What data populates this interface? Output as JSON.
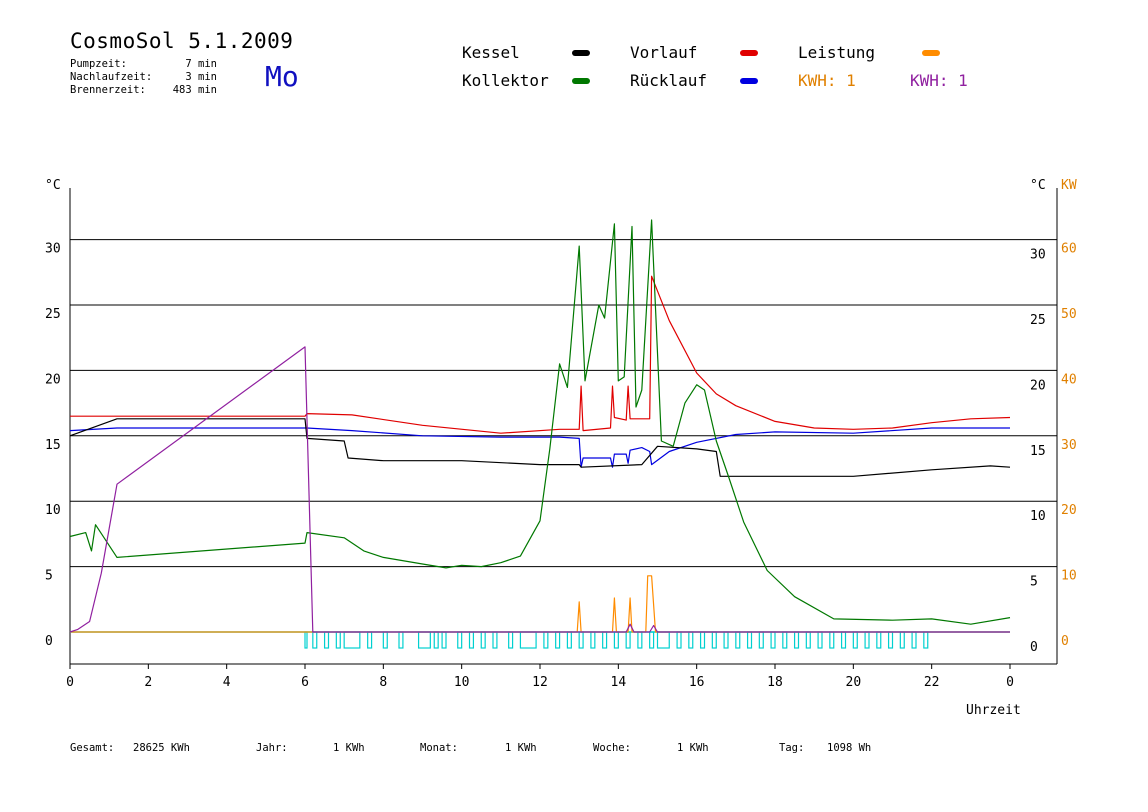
{
  "header": {
    "title": "CosmoSol 5.1.2009",
    "day": "Mo",
    "pump_label": "Pumpzeit:",
    "pump_value": "7 min",
    "nachlauf_label": "Nachlaufzeit:",
    "nachlauf_value": "3 min",
    "brenner_label": "Brennerzeit:",
    "brenner_value": "483 min"
  },
  "legend": {
    "kessel": "Kessel",
    "kollektor": "Kollektor",
    "vorlauf": "Vorlauf",
    "ruecklauf": "Rücklauf",
    "leistung": "Leistung",
    "kwh_orange": "KWH: 1",
    "kwh_purple": "KWH: 1"
  },
  "colors": {
    "kessel": "#000000",
    "kollektor": "#007800",
    "vorlauf": "#e00000",
    "ruecklauf": "#0000e0",
    "leistung": "#ff8c00",
    "kwh_purple": "#9020a0",
    "pump": "#00d0d0",
    "kw_axis": "#e08000"
  },
  "footer": {
    "gesamt_label": "Gesamt:",
    "gesamt_value": "28625 KWh",
    "jahr_label": "Jahr:",
    "jahr_value": "1 KWh",
    "monat_label": "Monat:",
    "monat_value": "1 KWh",
    "woche_label": "Woche:",
    "woche_value": "1 KWh",
    "tag_label": "Tag:",
    "tag_value": "1098 Wh"
  },
  "chart_data": {
    "type": "line",
    "xlabel": "Uhrzeit",
    "ylabel_left": "°C",
    "ylabel_right_temp": "°C",
    "ylabel_right_power": "KW",
    "xlim": [
      0,
      24
    ],
    "ylim": [
      -2.5,
      34.5
    ],
    "x_ticks": [
      "0",
      "2",
      "4",
      "6",
      "8",
      "10",
      "12",
      "14",
      "16",
      "18",
      "20",
      "22",
      "0"
    ],
    "y_ticks_left": [
      0,
      5,
      10,
      15,
      20,
      25,
      30
    ],
    "y_ticks_right_power": [
      "0",
      "10",
      "20",
      "30",
      "40",
      "50",
      "60"
    ],
    "grid": "horizontal",
    "series": [
      {
        "name": "Vorlauf",
        "key": "vorlauf",
        "points": [
          [
            0,
            16.5
          ],
          [
            1.2,
            16.5
          ],
          [
            6,
            16.5
          ],
          [
            6.05,
            16.7
          ],
          [
            7.2,
            16.6
          ],
          [
            9,
            15.8
          ],
          [
            11,
            15.2
          ],
          [
            12.5,
            15.5
          ],
          [
            13.0,
            15.5
          ],
          [
            13.05,
            18.8
          ],
          [
            13.1,
            15.4
          ],
          [
            13.8,
            15.6
          ],
          [
            13.85,
            18.8
          ],
          [
            13.9,
            16.4
          ],
          [
            14.2,
            16.2
          ],
          [
            14.25,
            18.8
          ],
          [
            14.3,
            16.3
          ],
          [
            14.6,
            16.3
          ],
          [
            14.8,
            16.3
          ],
          [
            14.85,
            27.2
          ],
          [
            15.3,
            23.8
          ],
          [
            16,
            19.8
          ],
          [
            16.5,
            18.2
          ],
          [
            17,
            17.3
          ],
          [
            18,
            16.1
          ],
          [
            19,
            15.6
          ],
          [
            20,
            15.5
          ],
          [
            21,
            15.6
          ],
          [
            22,
            16.0
          ],
          [
            23,
            16.3
          ],
          [
            24,
            16.4
          ]
        ]
      },
      {
        "name": "Rücklauf",
        "key": "ruecklauf",
        "points": [
          [
            0,
            15.4
          ],
          [
            1.2,
            15.6
          ],
          [
            6,
            15.6
          ],
          [
            6.05,
            15.6
          ],
          [
            7.2,
            15.4
          ],
          [
            9,
            15.0
          ],
          [
            11,
            14.9
          ],
          [
            12.5,
            14.9
          ],
          [
            13.0,
            14.8
          ],
          [
            13.05,
            12.6
          ],
          [
            13.1,
            13.3
          ],
          [
            13.8,
            13.3
          ],
          [
            13.85,
            12.6
          ],
          [
            13.9,
            13.6
          ],
          [
            14.2,
            13.6
          ],
          [
            14.25,
            12.9
          ],
          [
            14.3,
            13.9
          ],
          [
            14.6,
            14.1
          ],
          [
            14.8,
            13.8
          ],
          [
            14.85,
            12.8
          ],
          [
            15.3,
            13.8
          ],
          [
            16,
            14.5
          ],
          [
            17,
            15.1
          ],
          [
            18,
            15.3
          ],
          [
            20,
            15.2
          ],
          [
            22,
            15.6
          ],
          [
            24,
            15.6
          ]
        ]
      },
      {
        "name": "Kessel",
        "key": "kessel",
        "points": [
          [
            0,
            15.0
          ],
          [
            1.2,
            16.3
          ],
          [
            6,
            16.3
          ],
          [
            6.05,
            14.8
          ],
          [
            7.0,
            14.6
          ],
          [
            7.1,
            13.3
          ],
          [
            8,
            13.1
          ],
          [
            10,
            13.1
          ],
          [
            12,
            12.8
          ],
          [
            13.0,
            12.8
          ],
          [
            13.05,
            12.6
          ],
          [
            14.6,
            12.8
          ],
          [
            15.0,
            14.2
          ],
          [
            16,
            14.0
          ],
          [
            16.5,
            13.8
          ],
          [
            16.6,
            11.9
          ],
          [
            18,
            11.9
          ],
          [
            20,
            11.9
          ],
          [
            22,
            12.4
          ],
          [
            23.5,
            12.7
          ],
          [
            24,
            12.6
          ]
        ]
      },
      {
        "name": "Kollektor",
        "key": "kollektor",
        "points": [
          [
            0,
            7.3
          ],
          [
            0.4,
            7.6
          ],
          [
            0.55,
            6.2
          ],
          [
            0.65,
            8.2
          ],
          [
            1.2,
            5.7
          ],
          [
            6,
            6.8
          ],
          [
            6.05,
            7.6
          ],
          [
            7.0,
            7.2
          ],
          [
            7.5,
            6.2
          ],
          [
            8,
            5.7
          ],
          [
            9,
            5.2
          ],
          [
            9.6,
            4.9
          ],
          [
            10,
            5.1
          ],
          [
            10.5,
            5.0
          ],
          [
            11,
            5.3
          ],
          [
            11.5,
            5.8
          ],
          [
            12,
            8.5
          ],
          [
            12.25,
            14.0
          ],
          [
            12.5,
            20.5
          ],
          [
            12.7,
            18.7
          ],
          [
            13.0,
            29.5
          ],
          [
            13.15,
            19.2
          ],
          [
            13.5,
            25.0
          ],
          [
            13.65,
            24.0
          ],
          [
            13.9,
            31.2
          ],
          [
            14.0,
            19.2
          ],
          [
            14.15,
            19.5
          ],
          [
            14.35,
            31.0
          ],
          [
            14.45,
            17.2
          ],
          [
            14.6,
            18.5
          ],
          [
            14.85,
            31.5
          ],
          [
            15.1,
            14.6
          ],
          [
            15.4,
            14.2
          ],
          [
            15.7,
            17.5
          ],
          [
            16.0,
            18.9
          ],
          [
            16.2,
            18.5
          ],
          [
            16.5,
            14.6
          ],
          [
            16.8,
            12.0
          ],
          [
            17.2,
            8.4
          ],
          [
            17.8,
            4.7
          ],
          [
            18.5,
            2.7
          ],
          [
            19.5,
            1.0
          ],
          [
            21,
            0.9
          ],
          [
            22,
            1.0
          ],
          [
            23,
            0.6
          ],
          [
            24,
            1.1
          ]
        ]
      },
      {
        "name": "Leistung",
        "key": "leistung",
        "points": [
          [
            0,
            0
          ],
          [
            12.95,
            0
          ],
          [
            13.0,
            2.3
          ],
          [
            13.05,
            0
          ],
          [
            13.85,
            0
          ],
          [
            13.9,
            2.6
          ],
          [
            13.95,
            0
          ],
          [
            14.25,
            0
          ],
          [
            14.3,
            2.6
          ],
          [
            14.35,
            0
          ],
          [
            14.7,
            0
          ],
          [
            14.75,
            4.3
          ],
          [
            14.85,
            4.3
          ],
          [
            14.95,
            0
          ],
          [
            24,
            0
          ]
        ]
      },
      {
        "name": "KWH",
        "key": "kwh_purple",
        "points": [
          [
            0,
            0
          ],
          [
            0.2,
            0.2
          ],
          [
            0.5,
            0.8
          ],
          [
            0.8,
            4.5
          ],
          [
            1.2,
            11.3
          ],
          [
            6,
            21.8
          ],
          [
            6.2,
            0
          ],
          [
            14.2,
            0
          ],
          [
            14.3,
            0.6
          ],
          [
            14.4,
            0
          ],
          [
            14.8,
            0
          ],
          [
            14.9,
            0.5
          ],
          [
            15.0,
            0
          ],
          [
            24,
            0
          ]
        ]
      }
    ],
    "pump_intervals": [
      [
        6,
        6.05
      ],
      [
        6.2,
        6.3
      ],
      [
        6.5,
        6.6
      ],
      [
        6.8,
        6.9
      ],
      [
        7.0,
        7.4
      ],
      [
        7.6,
        7.7
      ],
      [
        8.0,
        8.1
      ],
      [
        8.4,
        8.5
      ],
      [
        8.9,
        9.2
      ],
      [
        9.3,
        9.4
      ],
      [
        9.5,
        9.6
      ],
      [
        9.9,
        10.0
      ],
      [
        10.2,
        10.3
      ],
      [
        10.5,
        10.6
      ],
      [
        10.8,
        10.9
      ],
      [
        11.2,
        11.3
      ],
      [
        11.5,
        11.9
      ],
      [
        12.1,
        12.2
      ],
      [
        12.4,
        12.5
      ],
      [
        12.7,
        12.8
      ],
      [
        13.0,
        13.1
      ],
      [
        13.3,
        13.4
      ],
      [
        13.6,
        13.7
      ],
      [
        13.9,
        14.0
      ],
      [
        14.2,
        14.3
      ],
      [
        14.5,
        14.6
      ],
      [
        14.8,
        14.9
      ],
      [
        15.0,
        15.3
      ],
      [
        15.5,
        15.6
      ],
      [
        15.8,
        15.9
      ],
      [
        16.1,
        16.2
      ],
      [
        16.4,
        16.5
      ],
      [
        16.7,
        16.8
      ],
      [
        17.0,
        17.1
      ],
      [
        17.3,
        17.4
      ],
      [
        17.6,
        17.7
      ],
      [
        17.9,
        18.0
      ],
      [
        18.2,
        18.3
      ],
      [
        18.5,
        18.6
      ],
      [
        18.8,
        18.9
      ],
      [
        19.1,
        19.2
      ],
      [
        19.4,
        19.5
      ],
      [
        19.7,
        19.8
      ],
      [
        20.0,
        20.1
      ],
      [
        20.3,
        20.4
      ],
      [
        20.6,
        20.7
      ],
      [
        20.9,
        21.0
      ],
      [
        21.2,
        21.3
      ],
      [
        21.5,
        21.6
      ],
      [
        21.8,
        21.9
      ]
    ]
  }
}
